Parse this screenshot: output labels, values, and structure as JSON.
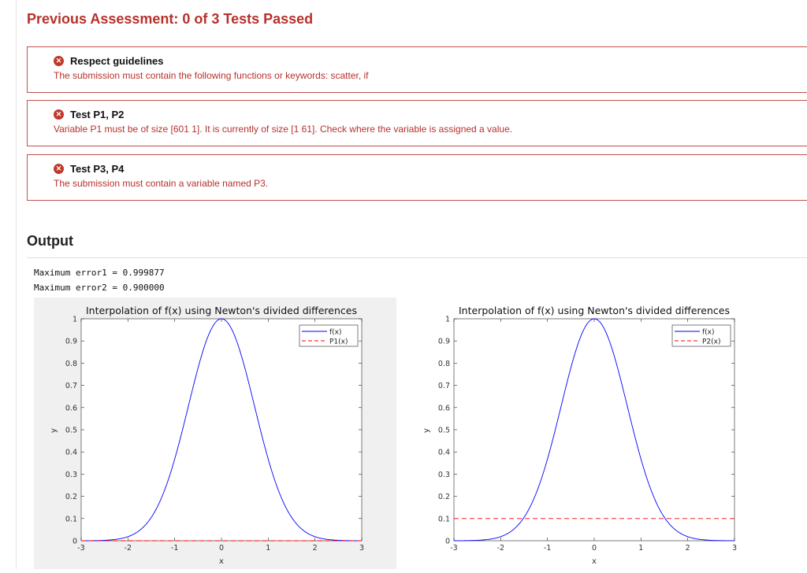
{
  "assessment": {
    "title": "Previous Assessment: 0 of 3 Tests Passed",
    "tests": [
      {
        "name": "Respect guidelines",
        "message": "The submission must contain the following functions or keywords: scatter, if",
        "status_icon": "error-icon",
        "status_color": "#c0392b"
      },
      {
        "name": "Test P1, P2",
        "message": "Variable P1 must be of size [601 1]. It is currently of size [1 61]. Check where the variable is assigned a value.",
        "status_icon": "error-icon",
        "status_color": "#c0392b"
      },
      {
        "name": "Test P3, P4",
        "message": "The submission must contain a variable named P3.",
        "status_icon": "error-icon",
        "status_color": "#c0392b"
      }
    ]
  },
  "output": {
    "title": "Output",
    "lines": [
      "Maximum error1 = 0.999877",
      "Maximum error2 = 0.900000"
    ]
  },
  "chart_data": [
    {
      "type": "line",
      "title": "Interpolation of f(x) using Newton's divided differences",
      "xlabel": "x",
      "ylabel": "y",
      "xlim": [
        -3,
        3
      ],
      "ylim": [
        0,
        1
      ],
      "xticks": [
        -3,
        -2,
        -1,
        0,
        1,
        2,
        3
      ],
      "yticks": [
        0,
        0.1,
        0.2,
        0.3,
        0.4,
        0.5,
        0.6,
        0.7,
        0.8,
        0.9,
        1
      ],
      "background": "#f0f0f0",
      "legend_position": "top-right",
      "series": [
        {
          "name": "f(x)",
          "color": "#0000ff",
          "style": "solid",
          "function": "exp(-x^2)"
        },
        {
          "name": "P1(x)",
          "color": "#ff0000",
          "style": "dashed",
          "x": [
            -3,
            3
          ],
          "values": [
            0,
            0
          ]
        }
      ]
    },
    {
      "type": "line",
      "title": "Interpolation of f(x) using Newton's divided differences",
      "xlabel": "x",
      "ylabel": "y",
      "xlim": [
        -3,
        3
      ],
      "ylim": [
        0,
        1
      ],
      "xticks": [
        -3,
        -2,
        -1,
        0,
        1,
        2,
        3
      ],
      "yticks": [
        0,
        0.1,
        0.2,
        0.3,
        0.4,
        0.5,
        0.6,
        0.7,
        0.8,
        0.9,
        1
      ],
      "background": "#ffffff",
      "legend_position": "top-right",
      "series": [
        {
          "name": "f(x)",
          "color": "#0000ff",
          "style": "solid",
          "function": "exp(-x^2)"
        },
        {
          "name": "P2(x)",
          "color": "#ff0000",
          "style": "dashed",
          "x": [
            -3,
            3
          ],
          "values": [
            0.1,
            0.1
          ]
        }
      ]
    }
  ]
}
